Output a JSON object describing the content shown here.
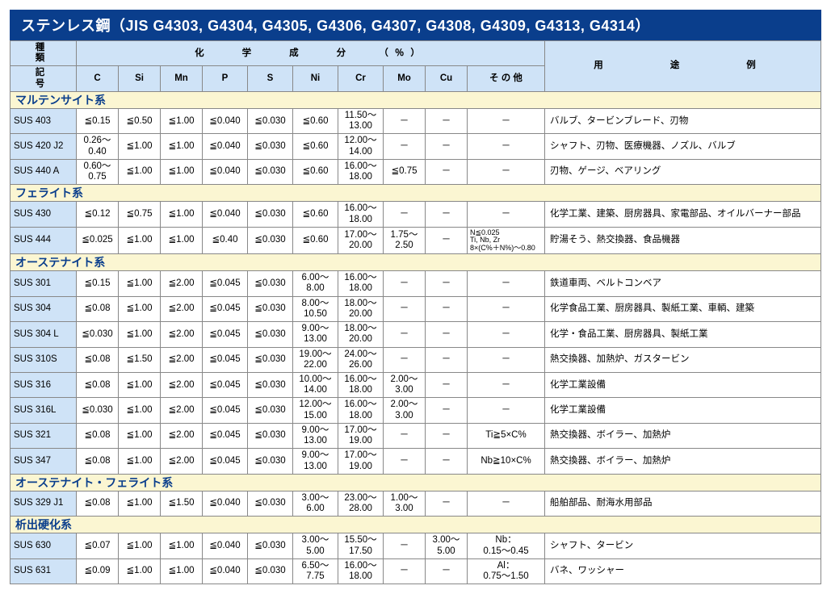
{
  "title": "ステンレス鋼（JIS G4303, G4304, G4305, G4306, G4307, G4308, G4309, G4313, G4314）",
  "header": {
    "kind": "種　　類",
    "symbol": "記　　号",
    "chem": "化　　学　　成　　分　　（％）",
    "use": "用　　途　　例",
    "cols": [
      "C",
      "Si",
      "Mn",
      "P",
      "S",
      "Ni",
      "Cr",
      "Mo",
      "Cu",
      "そ の 他"
    ]
  },
  "groups": [
    {
      "name": "マルテンサイト系",
      "rows": [
        {
          "g": "SUS 403",
          "c": "≦0.15",
          "si": "≦0.50",
          "mn": "≦1.00",
          "p": "≦0.040",
          "s": "≦0.030",
          "ni": "≦0.60",
          "cr": "11.50〜\n13.00",
          "mo": "－",
          "cu": "－",
          "o": "－",
          "u": "バルブ、タービンブレード、刃物"
        },
        {
          "g": "SUS 420 J2",
          "c": "0.26〜\n0.40",
          "si": "≦1.00",
          "mn": "≦1.00",
          "p": "≦0.040",
          "s": "≦0.030",
          "ni": "≦0.60",
          "cr": "12.00〜\n14.00",
          "mo": "－",
          "cu": "－",
          "o": "－",
          "u": "シャフト、刃物、医療機器、ノズル、バルブ"
        },
        {
          "g": "SUS 440 A",
          "c": "0.60〜\n0.75",
          "si": "≦1.00",
          "mn": "≦1.00",
          "p": "≦0.040",
          "s": "≦0.030",
          "ni": "≦0.60",
          "cr": "16.00〜\n18.00",
          "mo": "≦0.75",
          "cu": "－",
          "o": "－",
          "u": "刃物、ゲージ、ベアリング"
        }
      ]
    },
    {
      "name": "フェライト系",
      "rows": [
        {
          "g": "SUS 430",
          "c": "≦0.12",
          "si": "≦0.75",
          "mn": "≦1.00",
          "p": "≦0.040",
          "s": "≦0.030",
          "ni": "≦0.60",
          "cr": "16.00〜\n18.00",
          "mo": "－",
          "cu": "－",
          "o": "－",
          "u": "化学工業、建築、厨房器具、家電部品、オイルバーナー部品"
        },
        {
          "g": "SUS 444",
          "c": "≦0.025",
          "si": "≦1.00",
          "mn": "≦1.00",
          "p": "≦0.40",
          "s": "≦0.030",
          "ni": "≦0.60",
          "cr": "17.00〜\n20.00",
          "mo": "1.75〜\n2.50",
          "cu": "－",
          "o": "N≦0.025\nTi, Nb, Zr\n8×(C%＋N%)〜0.80",
          "osmall": true,
          "u": "貯湯そう、熱交換器、食品機器"
        }
      ]
    },
    {
      "name": "オーステナイト系",
      "rows": [
        {
          "g": "SUS 301",
          "c": "≦0.15",
          "si": "≦1.00",
          "mn": "≦2.00",
          "p": "≦0.045",
          "s": "≦0.030",
          "ni": "6.00〜\n8.00",
          "cr": "16.00〜\n18.00",
          "mo": "－",
          "cu": "－",
          "o": "－",
          "u": "鉄道車両、ベルトコンベア"
        },
        {
          "g": "SUS 304",
          "c": "≦0.08",
          "si": "≦1.00",
          "mn": "≦2.00",
          "p": "≦0.045",
          "s": "≦0.030",
          "ni": "8.00〜\n10.50",
          "cr": "18.00〜\n20.00",
          "mo": "－",
          "cu": "－",
          "o": "－",
          "u": "化学食品工業、厨房器具、製紙工業、車輌、建築"
        },
        {
          "g": "SUS 304 L",
          "c": "≦0.030",
          "si": "≦1.00",
          "mn": "≦2.00",
          "p": "≦0.045",
          "s": "≦0.030",
          "ni": "9.00〜\n13.00",
          "cr": "18.00〜\n20.00",
          "mo": "－",
          "cu": "－",
          "o": "－",
          "u": "化学・食品工業、厨房器具、製紙工業"
        },
        {
          "g": "SUS 310S",
          "c": "≦0.08",
          "si": "≦1.50",
          "mn": "≦2.00",
          "p": "≦0.045",
          "s": "≦0.030",
          "ni": "19.00〜\n22.00",
          "cr": "24.00〜\n26.00",
          "mo": "－",
          "cu": "－",
          "o": "－",
          "u": "熱交換器、加熱炉、ガスタービン"
        },
        {
          "g": "SUS 316",
          "c": "≦0.08",
          "si": "≦1.00",
          "mn": "≦2.00",
          "p": "≦0.045",
          "s": "≦0.030",
          "ni": "10.00〜\n14.00",
          "cr": "16.00〜\n18.00",
          "mo": "2.00〜\n3.00",
          "cu": "－",
          "o": "－",
          "u": "化学工業設備"
        },
        {
          "g": "SUS 316L",
          "c": "≦0.030",
          "si": "≦1.00",
          "mn": "≦2.00",
          "p": "≦0.045",
          "s": "≦0.030",
          "ni": "12.00〜\n15.00",
          "cr": "16.00〜\n18.00",
          "mo": "2.00〜\n3.00",
          "cu": "－",
          "o": "－",
          "u": "化学工業設備"
        },
        {
          "g": "SUS 321",
          "c": "≦0.08",
          "si": "≦1.00",
          "mn": "≦2.00",
          "p": "≦0.045",
          "s": "≦0.030",
          "ni": "9.00〜\n13.00",
          "cr": "17.00〜\n19.00",
          "mo": "－",
          "cu": "－",
          "o": "Ti≧5×C%",
          "u": "熱交換器、ボイラー、加熱炉"
        },
        {
          "g": "SUS 347",
          "c": "≦0.08",
          "si": "≦1.00",
          "mn": "≦2.00",
          "p": "≦0.045",
          "s": "≦0.030",
          "ni": "9.00〜\n13.00",
          "cr": "17.00〜\n19.00",
          "mo": "－",
          "cu": "－",
          "o": "Nb≧10×C%",
          "u": "熱交換器、ボイラー、加熱炉"
        }
      ]
    },
    {
      "name": "オーステナイト・フェライト系",
      "rows": [
        {
          "g": "SUS 329 J1",
          "c": "≦0.08",
          "si": "≦1.00",
          "mn": "≦1.50",
          "p": "≦0.040",
          "s": "≦0.030",
          "ni": "3.00〜\n6.00",
          "cr": "23.00〜\n28.00",
          "mo": "1.00〜\n3.00",
          "cu": "－",
          "o": "－",
          "u": "船舶部品、耐海水用部品"
        }
      ]
    },
    {
      "name": "析出硬化系",
      "rows": [
        {
          "g": "SUS 630",
          "c": "≦0.07",
          "si": "≦1.00",
          "mn": "≦1.00",
          "p": "≦0.040",
          "s": "≦0.030",
          "ni": "3.00〜\n5.00",
          "cr": "15.50〜\n17.50",
          "mo": "－",
          "cu": "3.00〜\n5.00",
          "o": "Nb：\n0.15〜0.45",
          "u": "シャフト、タービン"
        },
        {
          "g": "SUS 631",
          "c": "≦0.09",
          "si": "≦1.00",
          "mn": "≦1.00",
          "p": "≦0.040",
          "s": "≦0.030",
          "ni": "6.50〜\n7.75",
          "cr": "16.00〜\n18.00",
          "mo": "－",
          "cu": "－",
          "o": "Al：\n0.75〜1.50",
          "u": "バネ、ワッシャー"
        }
      ]
    }
  ],
  "style": {
    "title_bg": "#0a3e8c",
    "title_fg": "#ffffff",
    "header_bg": "#cfe3f7",
    "group_bg": "#fbf6d2",
    "group_fg": "#0a3e8c",
    "border": "#888888"
  }
}
